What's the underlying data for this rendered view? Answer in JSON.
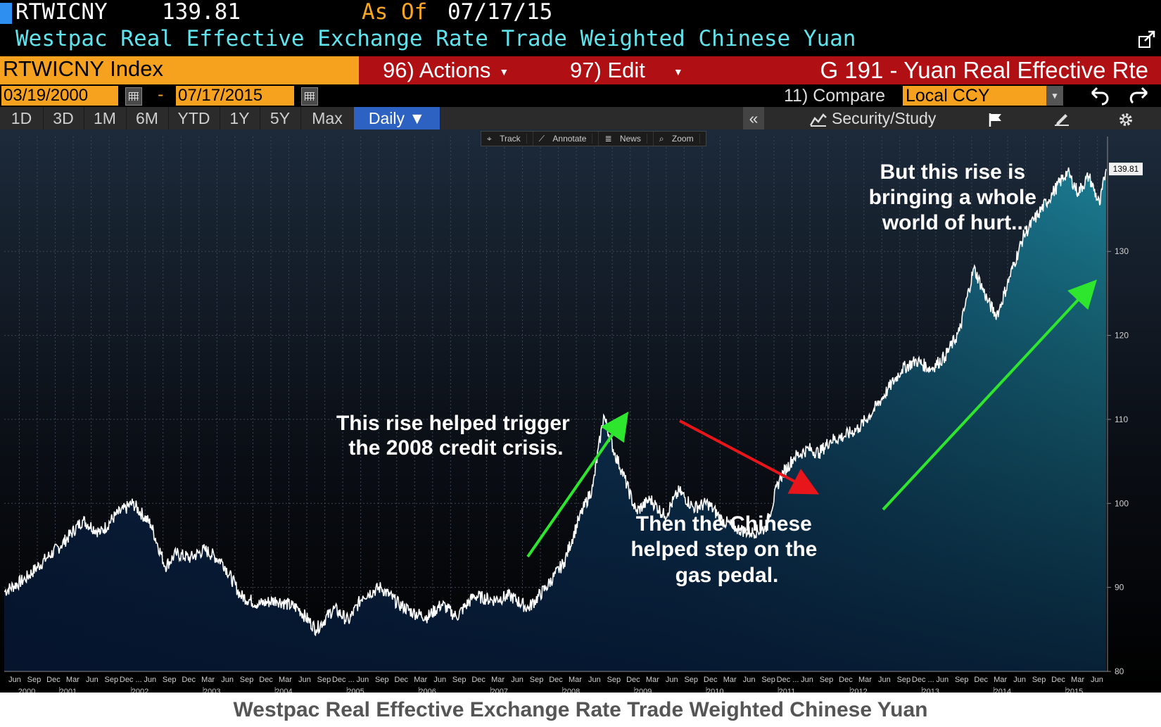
{
  "header": {
    "ticker": "RTWICNY",
    "price": "139.81",
    "as_of_label": "As Of",
    "as_of_date": "07/17/15",
    "description": "Westpac Real Effective Exchange Rate Trade Weighted Chinese Yuan"
  },
  "toolbar": {
    "index_label": "RTWICNY Index",
    "actions_label": "96) Actions",
    "edit_label": "97) Edit",
    "page_title": "G 191 - Yuan Real Effective Rte"
  },
  "dates": {
    "start": "03/19/2000",
    "dash": "-",
    "end": "07/17/2015",
    "compare_label": "11) Compare",
    "currency": "Local CCY"
  },
  "range_tabs": [
    "1D",
    "3D",
    "1M",
    "6M",
    "YTD",
    "1Y",
    "5Y",
    "Max"
  ],
  "frequency": "Daily ▼",
  "right_tools": {
    "collapse": "«",
    "security_study": "Security/Study"
  },
  "mini_tools": [
    "Track",
    "Annotate",
    "News",
    "Zoom"
  ],
  "icons": {
    "export": "export-icon",
    "calendar": "calendar-icon",
    "undo": "undo-icon",
    "redo": "redo-icon",
    "flag": "flag-icon",
    "edit": "edit-icon",
    "settings": "gear-icon"
  },
  "colors": {
    "accent_orange": "#f7a21f",
    "toolbar_red": "#b00f14",
    "desc_cyan": "#5fe3ec",
    "arrow_green": "#2ee62e",
    "arrow_red": "#e8161a"
  },
  "chart_data": {
    "type": "area",
    "title": "",
    "xlabel": "",
    "ylabel": "",
    "ylim": [
      80,
      142
    ],
    "y_ticks": [
      80,
      90,
      100,
      110,
      120,
      130
    ],
    "last_value_label": "139.81",
    "x_years": [
      "2000",
      "2001",
      "2002",
      "2003",
      "2004",
      "2005",
      "2006",
      "2007",
      "2008",
      "2009",
      "2010",
      "2011",
      "2012",
      "2013",
      "2014",
      "2015"
    ],
    "x_month_labels": [
      "Jun",
      "Sep",
      "Dec",
      "Mar",
      "Jun",
      "Sep",
      "Dec ...",
      "Jun",
      "Sep",
      "Dec",
      "Mar",
      "Jun",
      "Sep",
      "Dec",
      "Mar",
      "Jun",
      "Sep",
      "Dec ...",
      "Jun",
      "Sep",
      "Dec",
      "Mar",
      "Jun",
      "Sep",
      "Dec",
      "Mar",
      "Jun",
      "Sep",
      "Dec",
      "Mar",
      "Jun",
      "Sep",
      "Dec",
      "Mar",
      "Jun",
      "Sep",
      "Dec",
      "Mar",
      "Jun",
      "Sep",
      "Dec ...",
      "Jun",
      "Sep",
      "Dec",
      "Mar",
      "Jun",
      "Sep",
      "Dec ...",
      "Jun",
      "Sep",
      "Dec",
      "Mar",
      "Jun",
      "Sep",
      "Dec",
      "Mar",
      "Jun"
    ],
    "series": [
      {
        "x": [
          2000.21,
          2000.5,
          2000.8,
          2001.0,
          2001.3,
          2001.55,
          2001.75,
          2002.0,
          2002.25,
          2002.45,
          2002.6,
          2002.8,
          2003.0,
          2003.25,
          2003.5,
          2003.75,
          2004.0,
          2004.3,
          2004.55,
          2004.8,
          2005.0,
          2005.2,
          2005.45,
          2005.7,
          2005.9,
          2006.1,
          2006.3,
          2006.5,
          2006.75,
          2007.0,
          2007.25,
          2007.5,
          2007.75,
          2008.0,
          2008.2,
          2008.4,
          2008.55,
          2008.7,
          2008.8,
          2009.0,
          2009.2,
          2009.4,
          2009.6,
          2009.8,
          2010.0,
          2010.2,
          2010.4,
          2010.6,
          2010.8,
          2011.0,
          2011.2,
          2011.4,
          2011.55,
          2011.7,
          2011.9,
          2012.1,
          2012.3,
          2012.5,
          2012.7,
          2012.9,
          2013.1,
          2013.3,
          2013.5,
          2013.7,
          2013.9,
          2014.0,
          2014.05,
          2014.2,
          2014.4,
          2014.6,
          2014.8,
          2015.0,
          2015.15,
          2015.3,
          2015.45,
          2015.54
        ],
        "values": [
          89.5,
          91.0,
          93.5,
          95.0,
          98.0,
          96.5,
          98.5,
          100.0,
          97.5,
          92.5,
          94.0,
          93.5,
          94.5,
          93.0,
          89.0,
          88.0,
          88.5,
          87.5,
          85.0,
          87.5,
          86.0,
          89.0,
          90.0,
          88.0,
          87.0,
          86.5,
          88.0,
          86.5,
          89.0,
          88.5,
          89.0,
          87.5,
          90.0,
          93.0,
          98.0,
          102.0,
          110.5,
          106.0,
          104.0,
          99.0,
          100.5,
          98.5,
          101.5,
          99.5,
          100.0,
          98.0,
          97.0,
          96.5,
          97.0,
          103.0,
          105.5,
          106.5,
          106.0,
          107.5,
          108.0,
          109.0,
          111.0,
          113.5,
          116.0,
          117.0,
          116.0,
          117.5,
          120.5,
          128.0,
          124.0,
          122.5,
          123.0,
          127.0,
          132.0,
          134.5,
          137.0,
          139.5,
          137.0,
          139.0,
          135.5,
          139.81
        ]
      }
    ],
    "annotations": [
      {
        "text": "This rise helped trigger the 2008 credit crisis.",
        "lines": [
          "This rise helped trigger",
          "the 2008 credit crisis."
        ]
      },
      {
        "text": "Then the Chinese helped step on the gas pedal.",
        "lines": [
          "Then the Chinese",
          "helped step on the",
          "gas pedal."
        ]
      },
      {
        "text": "But this rise is bringing a whole world of hurt...",
        "lines": [
          "But this rise is",
          "bringing a whole",
          "world of hurt..."
        ]
      }
    ],
    "grid": true,
    "legend": "none"
  },
  "caption": "Westpac Real Effective Exchange Rate Trade Weighted Chinese Yuan"
}
